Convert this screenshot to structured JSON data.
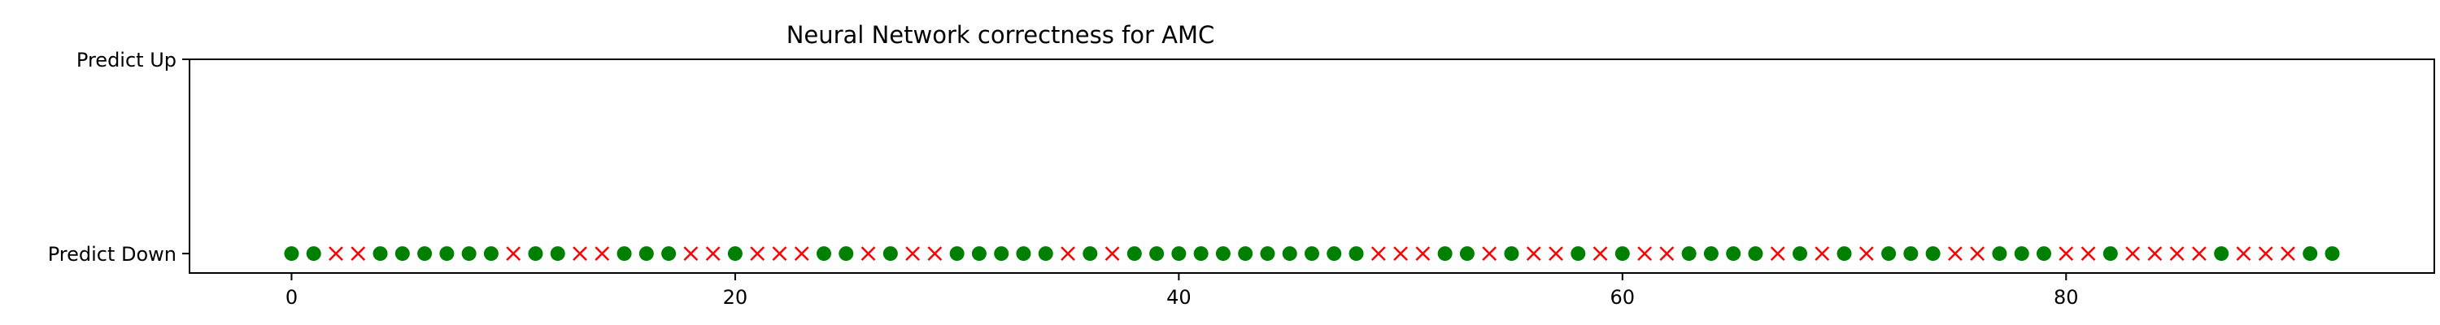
{
  "chart_data": {
    "type": "scatter",
    "title": "Neural Network correctness for AMC",
    "xlabel": "",
    "ylabel": "",
    "xlim": [
      -4.6,
      96.6
    ],
    "ylim": [
      -0.1,
      1.0
    ],
    "x_ticks": [
      0,
      20,
      40,
      60,
      80
    ],
    "x_tick_labels": [
      "0",
      "20",
      "40",
      "60",
      "80"
    ],
    "y_ticks": [
      0,
      1
    ],
    "y_tick_labels": [
      "Predict Down",
      "Predict Up"
    ],
    "grid": false,
    "legend": "none",
    "series": [
      {
        "marker": "circle",
        "color": "#008000",
        "y": 0,
        "x": [
          0,
          1,
          4,
          5,
          6,
          7,
          8,
          9,
          11,
          12,
          15,
          16,
          17,
          20,
          24,
          25,
          27,
          30,
          31,
          32,
          33,
          34,
          36,
          38,
          39,
          40,
          41,
          42,
          43,
          44,
          45,
          46,
          47,
          48,
          52,
          53,
          55,
          58,
          60,
          63,
          64,
          65,
          66,
          68,
          70,
          72,
          73,
          74,
          77,
          78,
          79,
          82,
          87,
          91,
          92
        ]
      },
      {
        "marker": "x",
        "color": "#ff0000",
        "y": 0,
        "x": [
          2,
          3,
          10,
          13,
          14,
          18,
          19,
          21,
          22,
          23,
          26,
          28,
          29,
          35,
          37,
          49,
          50,
          51,
          54,
          56,
          57,
          59,
          61,
          62,
          67,
          69,
          71,
          75,
          76,
          80,
          81,
          83,
          84,
          85,
          86,
          88,
          89,
          90
        ]
      }
    ]
  }
}
